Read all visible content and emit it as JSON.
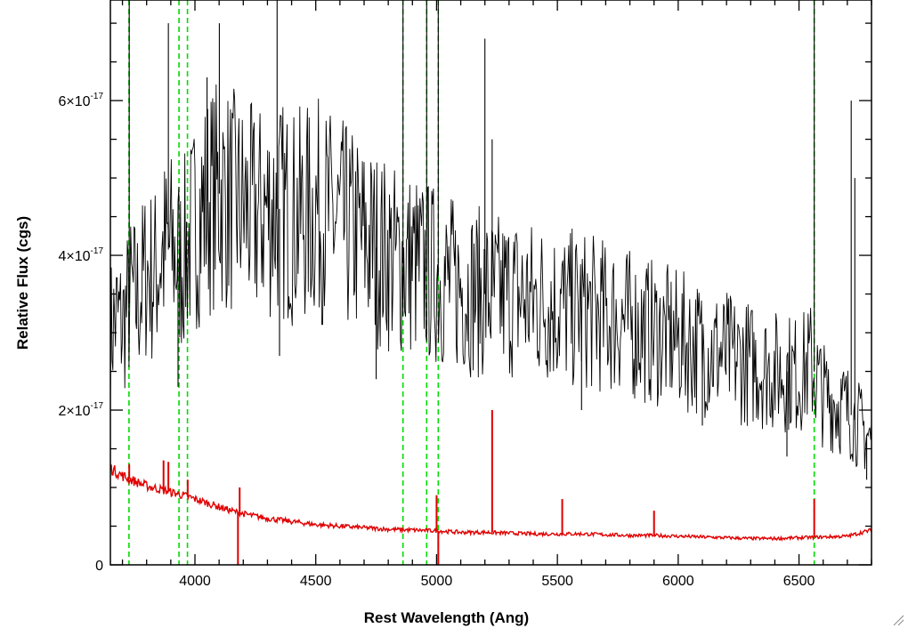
{
  "chart_data": {
    "type": "line",
    "title": "",
    "xlabel": "Rest Wavelength (Ang)",
    "ylabel": "Relative Flux (cgs)",
    "xlim": [
      3650,
      6800
    ],
    "ylim": [
      0,
      7.3e-17
    ],
    "x_ticks": [
      {
        "value": 4000,
        "label": "4000"
      },
      {
        "value": 4500,
        "label": "4500"
      },
      {
        "value": 5000,
        "label": "5000"
      },
      {
        "value": 5500,
        "label": "5500"
      },
      {
        "value": 6000,
        "label": "6000"
      },
      {
        "value": 6500,
        "label": "6500"
      }
    ],
    "x_minor_step": 100,
    "y_ticks": [
      {
        "value": 0,
        "mantissa": "0",
        "exponent": ""
      },
      {
        "value": 2e-17,
        "mantissa": "2×10",
        "exponent": "-17"
      },
      {
        "value": 4e-17,
        "mantissa": "4×10",
        "exponent": "-17"
      },
      {
        "value": 6e-17,
        "mantissa": "6×10",
        "exponent": "-17"
      }
    ],
    "y_minor_step": 5e-18,
    "grid": false,
    "series": [
      {
        "color": "#000000",
        "style": "solid",
        "points": [
          [
            3650,
            3e-17
          ],
          [
            3675,
            3.2e-17
          ],
          [
            3700,
            3.1e-17
          ],
          [
            3720,
            3.3e-17
          ],
          [
            3740,
            3.5e-17
          ],
          [
            3760,
            3.4e-17
          ],
          [
            3780,
            3.6e-17
          ],
          [
            3800,
            3.8e-17
          ],
          [
            3830,
            3.7e-17
          ],
          [
            3860,
            4e-17
          ],
          [
            3900,
            4.1e-17
          ],
          [
            3940,
            3.9e-17
          ],
          [
            3980,
            4.2e-17
          ],
          [
            4000,
            4.4e-17
          ],
          [
            4050,
            4.7e-17
          ],
          [
            4100,
            4.8e-17
          ],
          [
            4150,
            4.7e-17
          ],
          [
            4200,
            4.6e-17
          ],
          [
            4250,
            4.5e-17
          ],
          [
            4300,
            4.6e-17
          ],
          [
            4350,
            4.6e-17
          ],
          [
            4400,
            4.5e-17
          ],
          [
            4450,
            4.5e-17
          ],
          [
            4500,
            4.6e-17
          ],
          [
            4550,
            4.5e-17
          ],
          [
            4600,
            4.4e-17
          ],
          [
            4650,
            4.3e-17
          ],
          [
            4700,
            4.2e-17
          ],
          [
            4750,
            4.1e-17
          ],
          [
            4800,
            4e-17
          ],
          [
            4850,
            3.9e-17
          ],
          [
            4900,
            3.9e-17
          ],
          [
            4950,
            3.8e-17
          ],
          [
            5000,
            3.75e-17
          ],
          [
            5050,
            3.65e-17
          ],
          [
            5100,
            3.6e-17
          ],
          [
            5150,
            3.55e-17
          ],
          [
            5200,
            3.5e-17
          ],
          [
            5250,
            3.45e-17
          ],
          [
            5300,
            3.5e-17
          ],
          [
            5350,
            3.45e-17
          ],
          [
            5400,
            3.4e-17
          ],
          [
            5450,
            3.4e-17
          ],
          [
            5500,
            3.35e-17
          ],
          [
            5550,
            3.3e-17
          ],
          [
            5600,
            3.3e-17
          ],
          [
            5650,
            3.25e-17
          ],
          [
            5700,
            3.2e-17
          ],
          [
            5750,
            3.2e-17
          ],
          [
            5800,
            3.1e-17
          ],
          [
            5850,
            3.05e-17
          ],
          [
            5900,
            3e-17
          ],
          [
            5950,
            2.95e-17
          ],
          [
            6000,
            2.9e-17
          ],
          [
            6050,
            2.85e-17
          ],
          [
            6100,
            2.8e-17
          ],
          [
            6150,
            2.75e-17
          ],
          [
            6200,
            2.7e-17
          ],
          [
            6250,
            2.65e-17
          ],
          [
            6300,
            2.6e-17
          ],
          [
            6350,
            2.55e-17
          ],
          [
            6400,
            2.5e-17
          ],
          [
            6450,
            2.5e-17
          ],
          [
            6500,
            2.45e-17
          ],
          [
            6550,
            2.6e-17
          ],
          [
            6600,
            2.2e-17
          ],
          [
            6650,
            2.1e-17
          ],
          [
            6700,
            2e-17
          ],
          [
            6750,
            1.8e-17
          ],
          [
            6800,
            1.6e-17
          ]
        ],
        "spikes": [
          [
            3728,
            7.3e-17
          ],
          [
            3890,
            7e-17
          ],
          [
            3930,
            2.3e-17
          ],
          [
            4050,
            6.3e-17
          ],
          [
            4101,
            7e-17
          ],
          [
            4340,
            7.3e-17
          ],
          [
            4350,
            2.7e-17
          ],
          [
            4750,
            2.4e-17
          ],
          [
            4861,
            7.3e-17
          ],
          [
            4959,
            7.3e-17
          ],
          [
            5007,
            7.3e-17
          ],
          [
            5200,
            6.8e-17
          ],
          [
            5230,
            5.5e-17
          ],
          [
            5600,
            2e-17
          ],
          [
            6100,
            1.8e-17
          ],
          [
            6450,
            1.4e-17
          ],
          [
            6563,
            7.3e-17
          ],
          [
            6716,
            6e-17
          ],
          [
            6731,
            5e-17
          ],
          [
            6780,
            1.1e-17
          ]
        ]
      },
      {
        "color": "#e00000",
        "style": "solid",
        "points": [
          [
            3650,
            1.25e-17
          ],
          [
            3700,
            1.15e-17
          ],
          [
            3750,
            1.08e-17
          ],
          [
            3800,
            1.02e-17
          ],
          [
            3850,
            9.8e-18
          ],
          [
            3900,
            9.4e-18
          ],
          [
            3950,
            9e-18
          ],
          [
            4000,
            8.5e-18
          ],
          [
            4050,
            8e-18
          ],
          [
            4100,
            7.5e-18
          ],
          [
            4150,
            7e-18
          ],
          [
            4200,
            6.6e-18
          ],
          [
            4300,
            6e-18
          ],
          [
            4400,
            5.6e-18
          ],
          [
            4500,
            5.2e-18
          ],
          [
            4600,
            5e-18
          ],
          [
            4700,
            4.8e-18
          ],
          [
            4800,
            4.6e-18
          ],
          [
            4900,
            4.5e-18
          ],
          [
            5000,
            4.4e-18
          ],
          [
            5100,
            4.2e-18
          ],
          [
            5200,
            4.2e-18
          ],
          [
            5300,
            4.1e-18
          ],
          [
            5400,
            4e-18
          ],
          [
            5500,
            4e-18
          ],
          [
            5600,
            4e-18
          ],
          [
            5700,
            3.9e-18
          ],
          [
            5800,
            3.8e-18
          ],
          [
            5900,
            3.8e-18
          ],
          [
            6000,
            3.7e-18
          ],
          [
            6100,
            3.6e-18
          ],
          [
            6200,
            3.5e-18
          ],
          [
            6300,
            3.4e-18
          ],
          [
            6400,
            3.4e-18
          ],
          [
            6500,
            3.5e-18
          ],
          [
            6600,
            3.6e-18
          ],
          [
            6700,
            3.7e-18
          ],
          [
            6800,
            4.5e-18
          ]
        ],
        "spikes": [
          [
            3728,
            1.3e-17
          ],
          [
            3870,
            1.35e-17
          ],
          [
            3890,
            1.33e-17
          ],
          [
            3970,
            1.1e-17
          ],
          [
            4178,
            0
          ],
          [
            4185,
            1e-17
          ],
          [
            5007,
            0
          ],
          [
            5000,
            9e-18
          ],
          [
            5230,
            2e-17
          ],
          [
            5520,
            8.5e-18
          ],
          [
            5900,
            7e-18
          ],
          [
            6563,
            8.5e-18
          ]
        ]
      }
    ],
    "reference_lines": {
      "color": "#00dd00",
      "style": "dashed",
      "x": [
        3727,
        3934,
        3969,
        4861,
        4959,
        5007,
        6563
      ]
    }
  }
}
